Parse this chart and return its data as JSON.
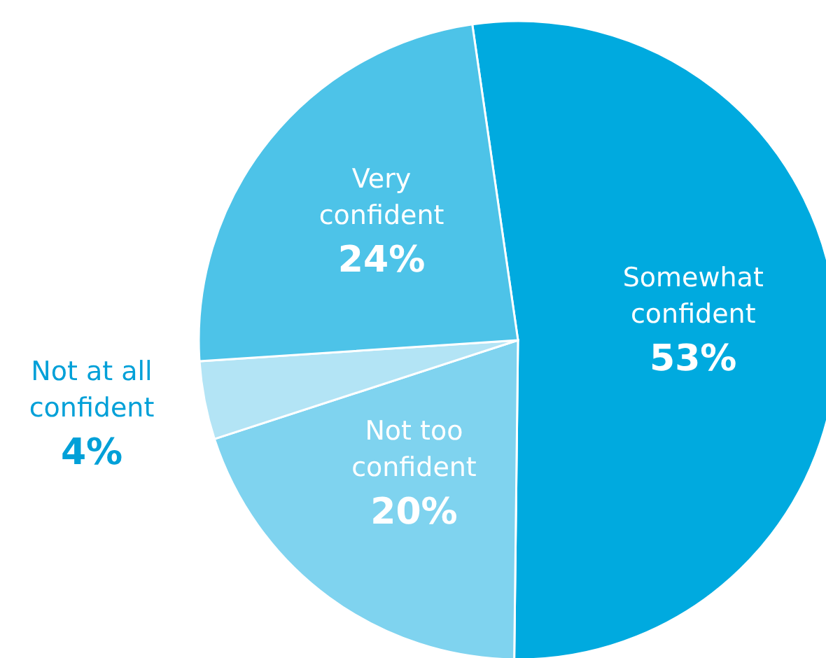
{
  "chart_data": {
    "type": "pie",
    "categories": [
      "Somewhat confident",
      "Not too confident",
      "Not at all confident",
      "Very confident"
    ],
    "values": [
      53,
      20,
      4,
      24
    ],
    "colors": [
      "#00aadf",
      "#7fd3ef",
      "#b3e4f5",
      "#4dc3e8"
    ],
    "value_labels": [
      "53%",
      "20%",
      "4%",
      "24%"
    ]
  }
}
